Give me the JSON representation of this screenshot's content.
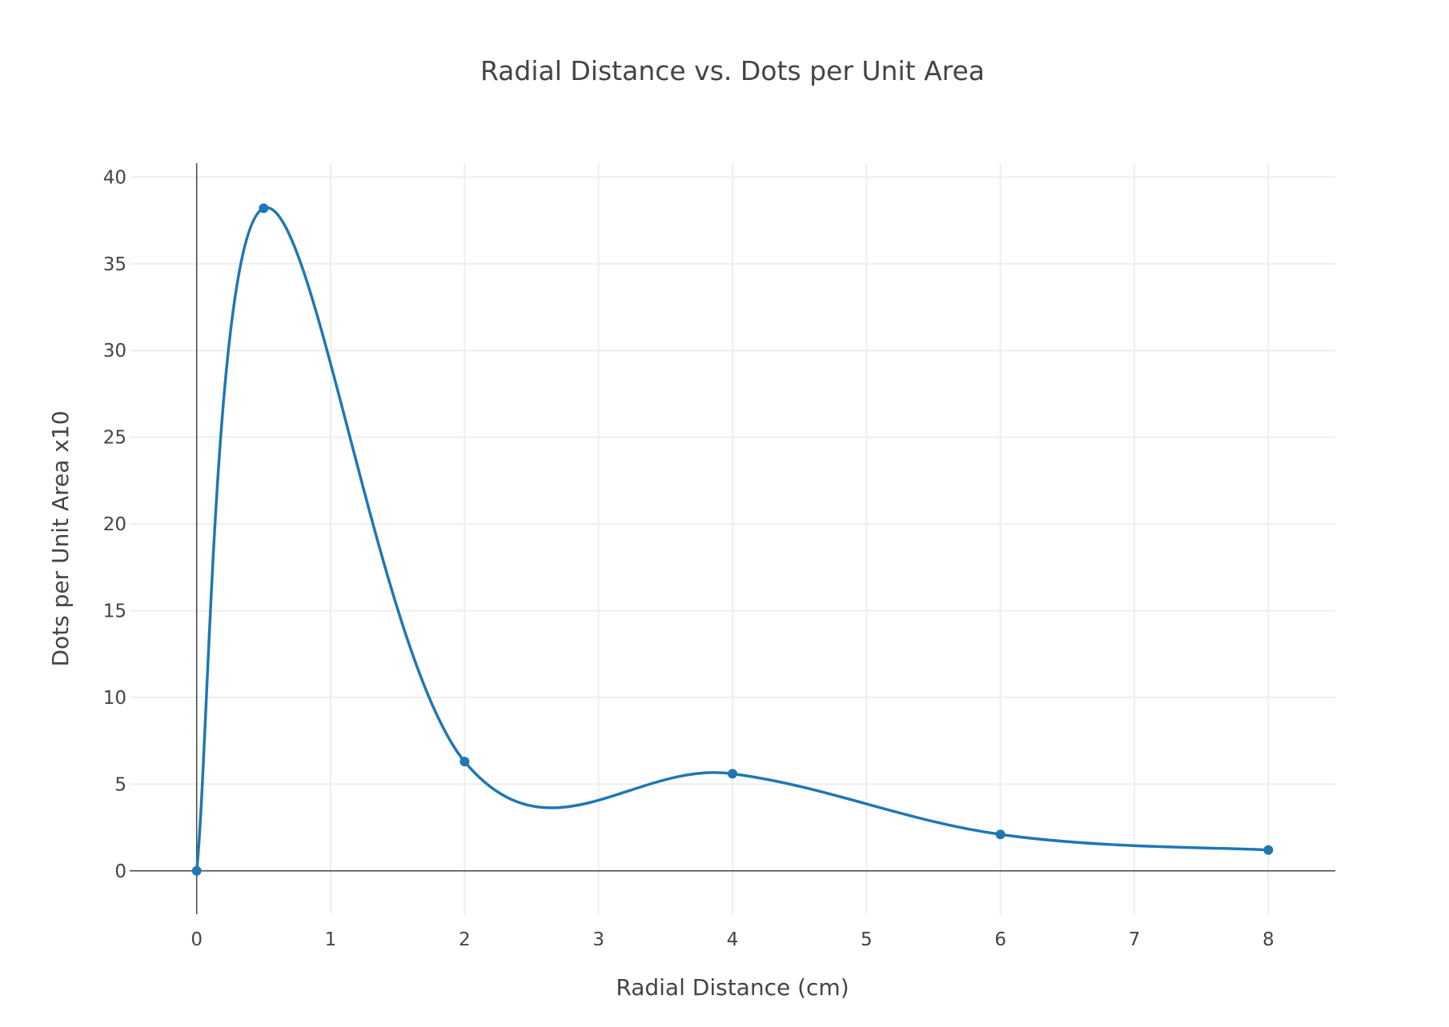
{
  "chart_data": {
    "type": "line",
    "title": "Radial Distance vs. Dots per Unit Area",
    "xlabel": "Radial Distance (cm)",
    "ylabel": "Dots per Unit Area x10",
    "xlim": [
      -0.5,
      8.5
    ],
    "ylim": [
      -2.5,
      40.8
    ],
    "x_ticks": [
      0,
      1,
      2,
      3,
      4,
      5,
      6,
      7,
      8
    ],
    "y_ticks": [
      0,
      5,
      10,
      15,
      20,
      25,
      30,
      35,
      40
    ],
    "x_tick_labels": [
      "0",
      "1",
      "2",
      "3",
      "4",
      "5",
      "6",
      "7",
      "8"
    ],
    "y_tick_labels": [
      "0",
      "5",
      "10",
      "15",
      "20",
      "25",
      "30",
      "35",
      "40"
    ],
    "grid": true,
    "line_shape": "spline",
    "series": [
      {
        "x": [
          0,
          0.5,
          2,
          4,
          6,
          8
        ],
        "y": [
          0,
          38.2,
          6.3,
          5.6,
          2.1,
          1.2
        ],
        "color": "#1f77b4"
      }
    ]
  }
}
